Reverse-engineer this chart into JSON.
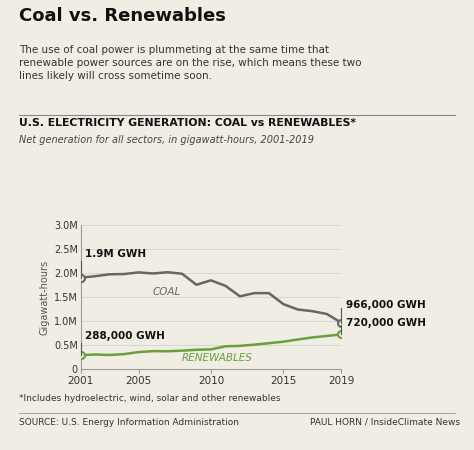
{
  "title": "Coal vs. Renewables",
  "subtitle": "The use of coal power is plummeting at the same time that\nrenewable power sources are on the rise, which means these two\nlines likely will cross sometime soon.",
  "chart_title": "U.S. ELECTRICITY GENERATION: COAL vs RENEWABLES*",
  "chart_subtitle": "Net generation for all sectors, in gigawatt-hours, 2001-2019",
  "ylabel": "Gigawatt-hours",
  "footnote": "*Includes hydroelectric, wind, solar and other renewables",
  "source": "SOURCE: U.S. Energy Information Administration",
  "credit": "PAUL HORN / InsideClimate News",
  "years": [
    2001,
    2002,
    2003,
    2004,
    2005,
    2006,
    2007,
    2008,
    2009,
    2010,
    2011,
    2012,
    2013,
    2014,
    2015,
    2016,
    2017,
    2018,
    2019
  ],
  "coal": [
    1903000,
    1933000,
    1973000,
    1978000,
    2013000,
    1990000,
    2016000,
    1985000,
    1755000,
    1847000,
    1733000,
    1514000,
    1581000,
    1581000,
    1352000,
    1239000,
    1205000,
    1146000,
    966000
  ],
  "renewables": [
    288000,
    302000,
    292000,
    310000,
    352000,
    372000,
    370000,
    382000,
    400000,
    408000,
    473000,
    482000,
    508000,
    537000,
    569000,
    615000,
    657000,
    689000,
    720000
  ],
  "coal_color": "#666666",
  "renewables_color": "#6b9e3e",
  "bg_color": "#f0ede4",
  "ylim": [
    0,
    3000000
  ],
  "yticks": [
    0,
    500000,
    1000000,
    1500000,
    2000000,
    2500000,
    3000000
  ],
  "ytick_labels": [
    "0",
    "0.5M",
    "1.0M",
    "1.5M",
    "2.0M",
    "2.5M",
    "3.0M"
  ],
  "xticks": [
    2001,
    2005,
    2010,
    2015,
    2019
  ],
  "coal_start_label": "1.9M GWH",
  "coal_end_label": "966,000 GWH",
  "renewables_start_label": "288,000 GWH",
  "renewables_end_label": "720,000 GWH"
}
